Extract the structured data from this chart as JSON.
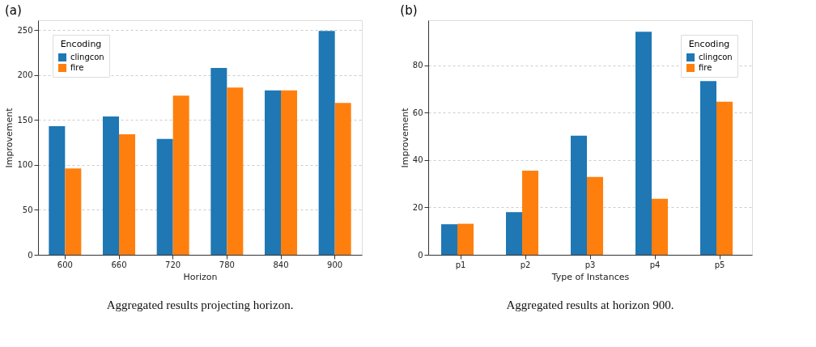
{
  "chart_data": [
    {
      "type": "bar",
      "title": "(a)",
      "xlabel": "Horizon",
      "ylabel": "Improvement",
      "legend_title": "Encoding",
      "legend": "top left",
      "grid": "y",
      "categories": [
        "600",
        "660",
        "720",
        "780",
        "840",
        "900"
      ],
      "series": [
        {
          "name": "clingcon",
          "color": "#1f77b4",
          "values": [
            143,
            154,
            129,
            208,
            183,
            249
          ]
        },
        {
          "name": "fire",
          "color": "#ff7f0e",
          "values": [
            96,
            134,
            177,
            186,
            183,
            169
          ]
        }
      ],
      "ylim": [
        0,
        261
      ],
      "yticks": [
        0,
        50,
        100,
        150,
        200,
        250
      ],
      "annotations": [
        "Aggregated results projecting horizon."
      ]
    },
    {
      "type": "bar",
      "title": "(b)",
      "xlabel": "Type of Instances",
      "ylabel": "Improvement",
      "legend_title": "Encoding",
      "legend": "top right",
      "grid": "y",
      "categories": [
        "p1",
        "p2",
        "p3",
        "p4",
        "p5"
      ],
      "series": [
        {
          "name": "clingcon",
          "color": "#1f77b4",
          "values": [
            12.9,
            18.0,
            50.3,
            94.1,
            73.3
          ]
        },
        {
          "name": "fire",
          "color": "#ff7f0e",
          "values": [
            13.1,
            35.5,
            32.9,
            23.6,
            64.6
          ]
        }
      ],
      "ylim": [
        0,
        99
      ],
      "yticks": [
        0,
        20,
        40,
        60,
        80
      ],
      "annotations": [
        "Aggregated results at horizon 900."
      ]
    }
  ]
}
